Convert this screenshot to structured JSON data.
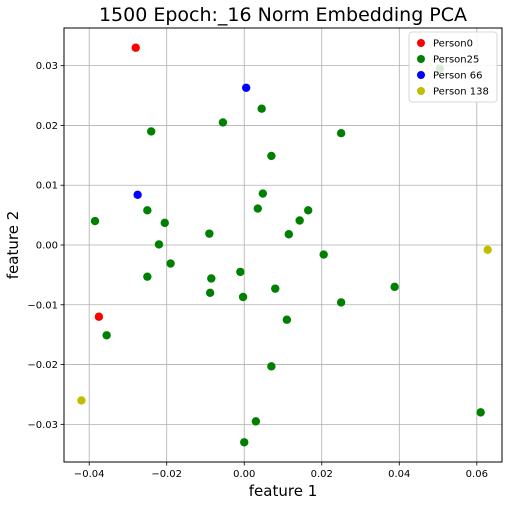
{
  "chart_data": {
    "type": "scatter",
    "title": "1500 Epoch:_16 Norm Embedding PCA",
    "xlabel": "feature 1",
    "ylabel": "feature 2",
    "xlim": [
      -0.0465,
      0.0665
    ],
    "ylim": [
      -0.0363,
      0.0363
    ],
    "xticks": [
      -0.04,
      -0.02,
      0.0,
      0.02,
      0.04,
      0.06
    ],
    "xtick_labels": [
      "−0.04",
      "−0.02",
      "0.00",
      "0.02",
      "0.04",
      "0.06"
    ],
    "yticks": [
      -0.03,
      -0.02,
      -0.01,
      0.0,
      0.01,
      0.02,
      0.03
    ],
    "ytick_labels": [
      "−0.03",
      "−0.02",
      "−0.01",
      "0.00",
      "0.01",
      "0.02",
      "0.03"
    ],
    "grid": true,
    "legend_position": "top-right",
    "series": [
      {
        "name": "Person0",
        "color": "#ff0000",
        "points": [
          [
            -0.028,
            0.033
          ],
          [
            -0.0375,
            -0.012
          ]
        ]
      },
      {
        "name": "Person25",
        "color": "#008000",
        "points": [
          [
            0.0045,
            0.0228
          ],
          [
            -0.0055,
            0.0205
          ],
          [
            -0.024,
            0.019
          ],
          [
            0.025,
            0.0187
          ],
          [
            0.007,
            0.0149
          ],
          [
            0.0048,
            0.0086
          ],
          [
            -0.025,
            0.0058
          ],
          [
            0.0035,
            0.0061
          ],
          [
            0.0165,
            0.0058
          ],
          [
            0.0143,
            0.0041
          ],
          [
            -0.0385,
            0.004
          ],
          [
            -0.0205,
            0.0037
          ],
          [
            -0.009,
            0.0019
          ],
          [
            0.0115,
            0.0018
          ],
          [
            -0.022,
            0.0001
          ],
          [
            0.0205,
            -0.0016
          ],
          [
            -0.019,
            -0.0031
          ],
          [
            -0.001,
            -0.0045
          ],
          [
            -0.025,
            -0.0053
          ],
          [
            -0.0085,
            -0.0056
          ],
          [
            0.008,
            -0.0073
          ],
          [
            -0.0088,
            -0.008
          ],
          [
            -0.0003,
            -0.0087
          ],
          [
            0.0388,
            -0.007
          ],
          [
            0.025,
            -0.0096
          ],
          [
            0.011,
            -0.0125
          ],
          [
            -0.0355,
            -0.0151
          ],
          [
            0.007,
            -0.0203
          ],
          [
            0.003,
            -0.0295
          ],
          [
            0.0,
            -0.033
          ],
          [
            0.061,
            -0.028
          ],
          [
            0.0505,
            0.0295
          ]
        ]
      },
      {
        "name": "Person 66",
        "color": "#0000ff",
        "points": [
          [
            0.0005,
            0.0263
          ],
          [
            -0.0275,
            0.0084
          ]
        ]
      },
      {
        "name": "Person 138",
        "color": "#bfbf00",
        "points": [
          [
            0.0628,
            -0.0008
          ],
          [
            -0.042,
            -0.026
          ]
        ]
      }
    ]
  }
}
